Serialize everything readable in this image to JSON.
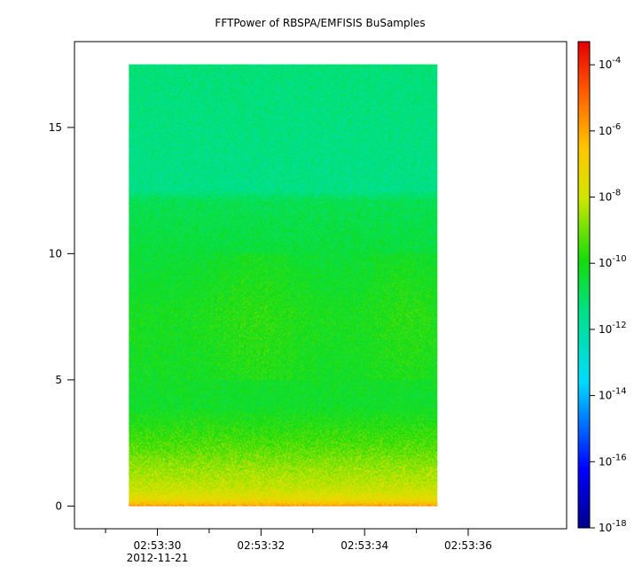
{
  "chart_data": {
    "type": "heatmap",
    "title": "FFTPower of RBSPA/EMFISIS  BuSamples",
    "xlabel": "",
    "ylabel": "",
    "x_ticks": [
      "02:53:30",
      "02:53:32",
      "02:53:34",
      "02:53:36"
    ],
    "x_ticks_secondary": [
      "2012-11-21",
      "",
      "",
      ""
    ],
    "x_tick_values": [
      30,
      32,
      34,
      36
    ],
    "x_minor_tick_values": [
      29,
      31,
      33,
      35
    ],
    "xlim": [
      28.4,
      37.9
    ],
    "x_data_range": [
      29.45,
      35.4
    ],
    "y_ticks": [
      "0",
      "5",
      "10",
      "15"
    ],
    "y_tick_values": [
      0,
      5,
      10,
      15
    ],
    "ylim": [
      -0.9,
      18.4
    ],
    "y_data_range": [
      0,
      17.5
    ],
    "colorbar": {
      "scale": "log",
      "exponents": [
        -18,
        -16,
        -14,
        -12,
        -10,
        -8,
        -6,
        -4
      ],
      "tick_labels": [
        "10^-18",
        "10^-16",
        "10^-14",
        "10^-12",
        "10^-10",
        "10^-8",
        "10^-6",
        "10^-4"
      ],
      "range_exponent": [
        -18,
        -3.3
      ],
      "colormap": "rainbow"
    },
    "z_profile_log10": [
      {
        "y": 0.0,
        "z": -5.6
      },
      {
        "y": 0.1,
        "z": -6.5
      },
      {
        "y": 0.3,
        "z": -7.4
      },
      {
        "y": 0.7,
        "z": -8.0
      },
      {
        "y": 1.5,
        "z": -8.6
      },
      {
        "y": 2.5,
        "z": -9.4
      },
      {
        "y": 4.0,
        "z": -10.3
      },
      {
        "y": 7.5,
        "z": -10.1
      },
      {
        "y": 10.0,
        "z": -10.5
      },
      {
        "y": 12.1,
        "z": -10.8
      },
      {
        "y": 12.5,
        "z": -11.5
      },
      {
        "y": 15.0,
        "z": -11.4
      },
      {
        "y": 17.5,
        "z": -11.3
      }
    ]
  }
}
